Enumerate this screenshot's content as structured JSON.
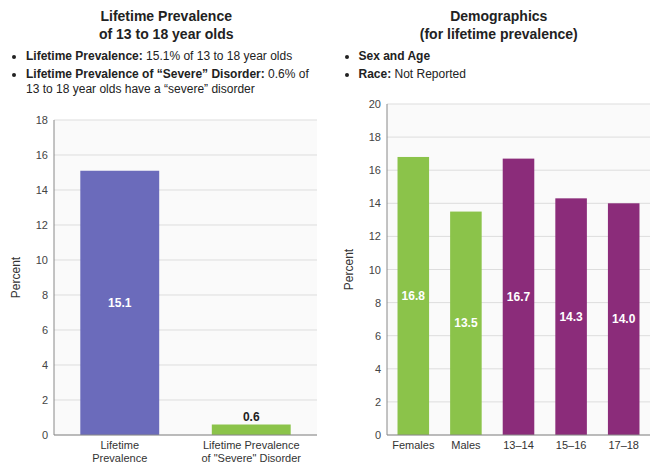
{
  "chart_data": [
    {
      "type": "bar",
      "title": "Lifetime Prevalence\nof 13 to 18 year olds",
      "annotations": [
        "Lifetime Prevalence: 15.1% of 13 to 18 year olds",
        "Lifetime Prevalence of “Severe” Disorder: 0.6% of 13 to 18 year olds have a “severe” disorder"
      ],
      "categories": [
        "Lifetime\nPrevalence",
        "Lifetime Prevalence\nof \"Severe\" Disorder"
      ],
      "values": [
        15.1,
        0.6
      ],
      "colors": [
        "#6b6bbb",
        "#8bc34a"
      ],
      "ylim": [
        0,
        18
      ],
      "yticks": [
        0,
        2,
        4,
        6,
        8,
        10,
        12,
        14,
        16,
        18
      ],
      "ylabel": "Percent",
      "grid": true,
      "data_labels": true
    },
    {
      "type": "bar",
      "title": "Demographics\n(for lifetime prevalence)",
      "annotations": [
        "Sex and Age",
        "Race: Not Reported"
      ],
      "categories": [
        "Females",
        "Males",
        "13–14",
        "15–16",
        "17–18"
      ],
      "values": [
        16.8,
        13.5,
        16.7,
        14.3,
        14.0
      ],
      "value_labels": [
        "16.8",
        "13.5",
        "16.7",
        "14.3",
        "14.0"
      ],
      "colors": [
        "#8bc34a",
        "#8bc34a",
        "#8b2c7a",
        "#8b2c7a",
        "#8b2c7a"
      ],
      "ylim": [
        0,
        20
      ],
      "yticks": [
        0,
        2,
        4,
        6,
        8,
        10,
        12,
        14,
        16,
        18,
        20
      ],
      "ylabel": "Percent",
      "grid": true,
      "data_labels": true
    }
  ]
}
